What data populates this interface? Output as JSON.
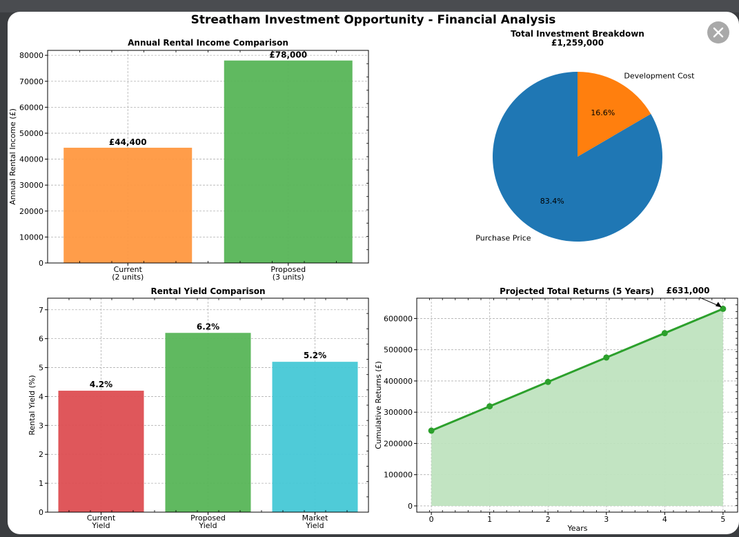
{
  "modal": {
    "title": "Streatham Investment Opportunity - Financial Analysis",
    "close_icon": "close-icon"
  },
  "chart_data": [
    {
      "type": "bar",
      "title": "Annual Rental Income Comparison",
      "xlabel": "",
      "ylabel": "Annual Rental Income (£)",
      "categories": [
        [
          "Current",
          "(2 units)"
        ],
        [
          "Proposed",
          "(3 units)"
        ]
      ],
      "values": [
        44400,
        78000
      ],
      "data_labels": [
        "£44,400",
        "£78,000"
      ],
      "colors": [
        "#ff9840",
        "#57b557"
      ],
      "ylim": [
        0,
        81900
      ],
      "yticks": [
        0,
        10000,
        20000,
        30000,
        40000,
        50000,
        60000,
        70000,
        80000
      ],
      "grid": true
    },
    {
      "type": "pie",
      "title": "Total Investment Breakdown",
      "subtitle": "£1,259,000",
      "labels": [
        "Purchase Price",
        "Development Cost"
      ],
      "values": [
        83.4,
        16.6
      ],
      "pct_labels": [
        "83.4%",
        "16.6%"
      ],
      "colors": [
        "#1f77b4",
        "#ff7f0e"
      ]
    },
    {
      "type": "bar",
      "title": "Rental Yield Comparison",
      "xlabel": "",
      "ylabel": "Rental Yield (%)",
      "categories": [
        [
          "Current",
          "Yield"
        ],
        [
          "Proposed",
          "Yield"
        ],
        [
          "Market",
          "Yield"
        ]
      ],
      "values": [
        4.2,
        6.2,
        5.2
      ],
      "data_labels": [
        "4.2%",
        "6.2%",
        "5.2%"
      ],
      "colors": [
        "#dd4e52",
        "#57b557",
        "#46c8d6"
      ],
      "ylim": [
        0,
        7.4
      ],
      "yticks": [
        0,
        1,
        2,
        3,
        4,
        5,
        6,
        7
      ],
      "grid": true
    },
    {
      "type": "area",
      "title": "Projected Total Returns (5 Years)",
      "xlabel": "Years",
      "ylabel": "Cumulative Returns (£)",
      "x": [
        0,
        1,
        2,
        3,
        4,
        5
      ],
      "values": [
        241000,
        319000,
        397000,
        475000,
        553000,
        631000
      ],
      "annotation": "£631,000",
      "color": "#2ca02c",
      "fill": "#bfe3bf",
      "xlim": [
        -0.25,
        5.25
      ],
      "ylim": [
        -20000,
        665000
      ],
      "yticks": [
        0,
        100000,
        200000,
        300000,
        400000,
        500000,
        600000
      ],
      "grid": true
    }
  ]
}
